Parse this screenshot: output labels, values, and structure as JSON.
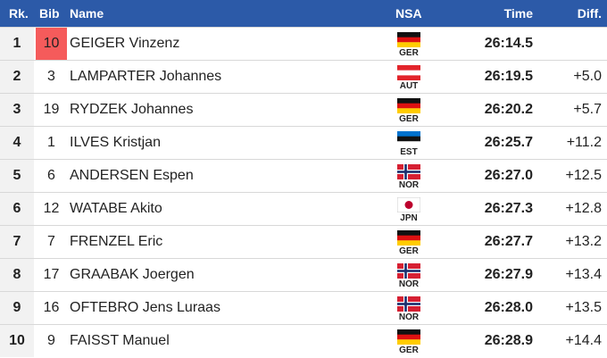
{
  "table": {
    "header": [
      "Rk.",
      "Bib",
      "Name",
      "NSA",
      "Time",
      "Diff."
    ],
    "rows": [
      {
        "rk": 1,
        "bib": 10,
        "name": "GEIGER Vinzenz",
        "nsa": "GER",
        "time": "26:14.5"
      },
      {
        "rk": 2,
        "bib": 3,
        "name": "LAMPARTER Johannes",
        "nsa": "AUT",
        "time": "26:19.5",
        "diff": "+5.0"
      },
      {
        "rk": 3,
        "bib": 19,
        "name": "RYDZEK Johannes",
        "nsa": "GER",
        "time": "26:20.2",
        "diff": "+5.7"
      },
      {
        "rk": 4,
        "bib": 1,
        "name": "ILVES Kristjan",
        "nsa": "EST",
        "time": "26:25.7",
        "diff": "+11.2"
      },
      {
        "rk": 5,
        "bib": 6,
        "name": "ANDERSEN Espen",
        "nsa": "NOR",
        "time": "26:27.0",
        "diff": "+12.5"
      },
      {
        "rk": 6,
        "bib": 12,
        "name": "WATABE Akito",
        "nsa": "JPN",
        "time": "26:27.3",
        "diff": "+12.8"
      },
      {
        "rk": 7,
        "bib": 7,
        "name": "FRENZEL Eric",
        "nsa": "GER",
        "time": "26:27.7",
        "diff": "+13.2"
      },
      {
        "rk": 8,
        "bib": 17,
        "name": "GRAABAK Joergen",
        "nsa": "NOR",
        "time": "26:27.9",
        "diff": "+13.4"
      },
      {
        "rk": 9,
        "bib": 16,
        "name": "OFTEBRO Jens Luraas",
        "nsa": "NOR",
        "time": "26:28.0",
        "diff": "+13.5"
      },
      {
        "rk": 10,
        "bib": 9,
        "name": "FAISST Manuel",
        "nsa": "GER",
        "time": "26:28.9",
        "diff": "+14.4"
      }
    ]
  }
}
